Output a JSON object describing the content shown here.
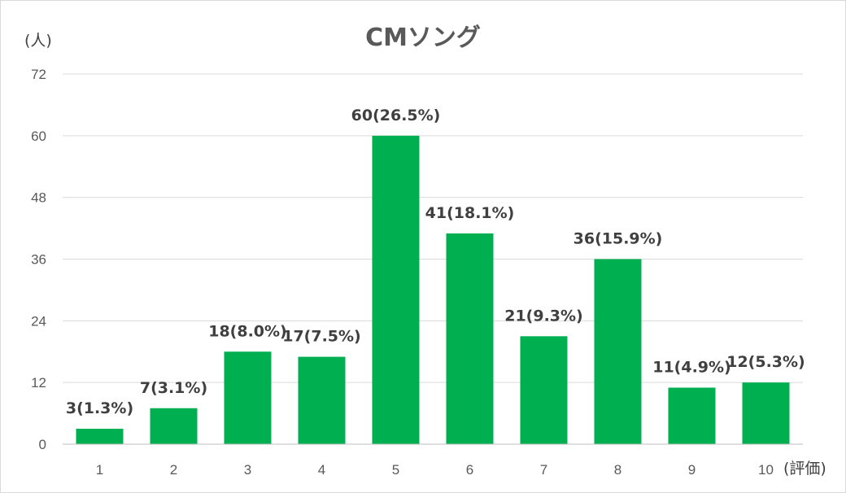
{
  "chart_data": {
    "type": "bar",
    "title": "CMソング",
    "ylabel": "(人)",
    "xlabel": "(評価)",
    "categories": [
      "1",
      "2",
      "3",
      "4",
      "5",
      "6",
      "7",
      "8",
      "9",
      "10"
    ],
    "values": [
      3,
      7,
      18,
      17,
      60,
      41,
      21,
      36,
      11,
      12
    ],
    "data_labels": [
      "3(1.3%)",
      "7(3.1%)",
      "18(8.0%)",
      "17(7.5%)",
      "60(26.5%)",
      "41(18.1%)",
      "21(9.3%)",
      "36(15.9%)",
      "11(4.9%)",
      "12(5.3%)"
    ],
    "ylim": [
      0,
      72
    ],
    "yticks": [
      "0",
      "12",
      "24",
      "36",
      "48",
      "60",
      "72"
    ],
    "grid": true,
    "bar_color": "#00B050"
  }
}
